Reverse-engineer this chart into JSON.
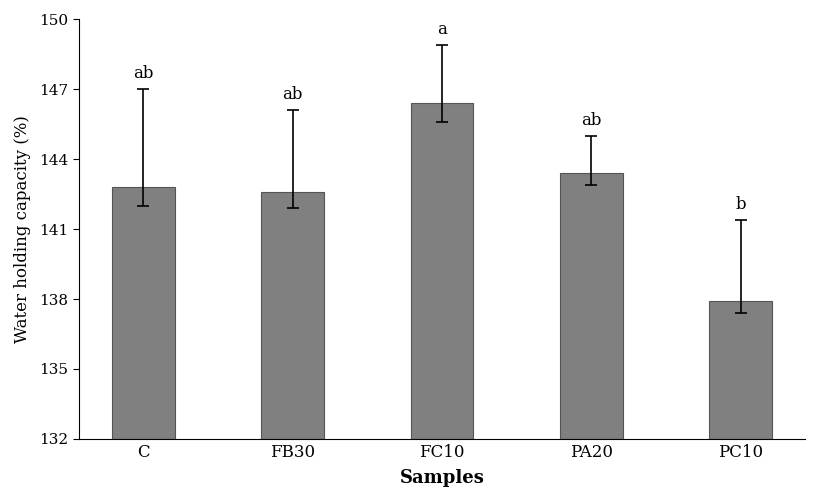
{
  "categories": [
    "C",
    "FB30",
    "FC10",
    "PA20",
    "PC10"
  ],
  "values": [
    142.8,
    142.6,
    146.4,
    143.4,
    137.9
  ],
  "errors_up": [
    4.2,
    3.5,
    2.5,
    1.6,
    3.5
  ],
  "errors_down": [
    0.8,
    0.7,
    0.8,
    0.5,
    0.5
  ],
  "sig_labels": [
    "ab",
    "ab",
    "a",
    "ab",
    "b"
  ],
  "bar_color": "#808080",
  "bar_edgecolor": "#555555",
  "ylabel": "Water holding capacity (%)",
  "xlabel": "Samples",
  "ylim": [
    132,
    150
  ],
  "yticks": [
    132,
    135,
    138,
    141,
    144,
    147,
    150
  ],
  "bar_width": 0.42,
  "figsize": [
    8.19,
    5.01
  ],
  "dpi": 100
}
